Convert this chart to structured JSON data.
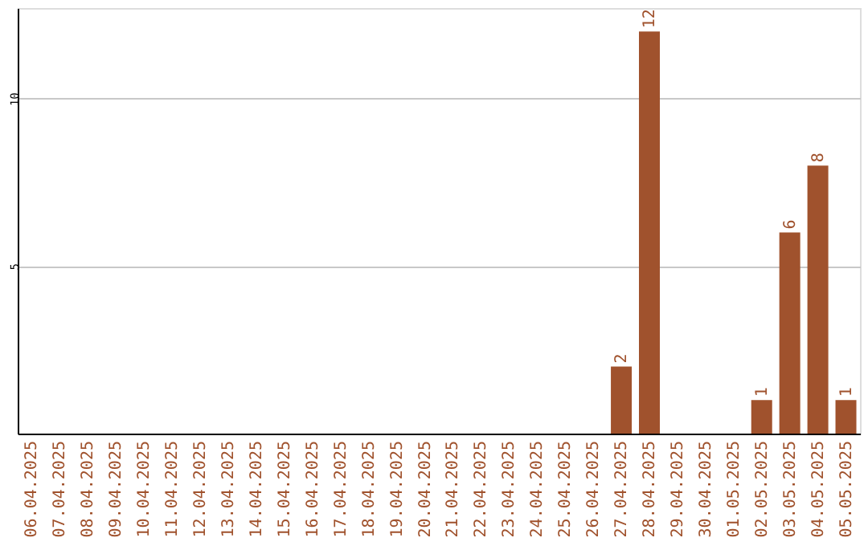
{
  "chart_data": {
    "type": "bar",
    "categories": [
      "06.04.2025",
      "07.04.2025",
      "08.04.2025",
      "09.04.2025",
      "10.04.2025",
      "11.04.2025",
      "12.04.2025",
      "13.04.2025",
      "14.04.2025",
      "15.04.2025",
      "16.04.2025",
      "17.04.2025",
      "18.04.2025",
      "19.04.2025",
      "20.04.2025",
      "21.04.2025",
      "22.04.2025",
      "23.04.2025",
      "24.04.2025",
      "25.04.2025",
      "26.04.2025",
      "27.04.2025",
      "28.04.2025",
      "29.04.2025",
      "30.04.2025",
      "01.05.2025",
      "02.05.2025",
      "03.05.2025",
      "04.05.2025",
      "05.05.2025"
    ],
    "values": [
      0,
      0,
      0,
      0,
      0,
      0,
      0,
      0,
      0,
      0,
      0,
      0,
      0,
      0,
      0,
      0,
      0,
      0,
      0,
      0,
      0,
      2,
      12,
      0,
      0,
      0,
      1,
      6,
      8,
      1
    ],
    "value_labels": [
      null,
      null,
      null,
      null,
      null,
      null,
      null,
      null,
      null,
      null,
      null,
      null,
      null,
      null,
      null,
      null,
      null,
      null,
      null,
      null,
      null,
      "2",
      "12",
      null,
      null,
      null,
      "1",
      "6",
      "8",
      "1"
    ],
    "color": "#a0522d",
    "ylim": [
      0,
      12.7
    ],
    "yticks": [
      5,
      10
    ],
    "grid": "y"
  }
}
